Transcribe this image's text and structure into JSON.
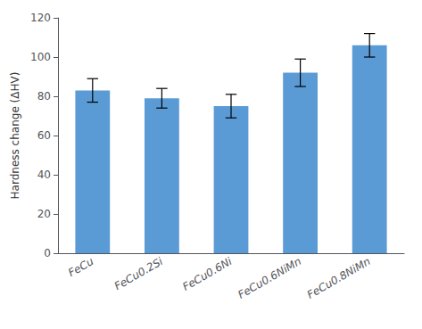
{
  "chart_data": {
    "type": "bar",
    "categories": [
      "FeCu",
      "FeCu0.2Si",
      "FeCu0.6Ni",
      "FeCu0.6NiMn",
      "FeCu0.8NiMn"
    ],
    "values": [
      83,
      79,
      75,
      92,
      106
    ],
    "errors": [
      6,
      5,
      6,
      7,
      6
    ],
    "color": "#5b9bd5",
    "ylabel": "Hardness change (ΔHV)",
    "ylim": [
      0,
      120
    ],
    "yticks": [
      0,
      20,
      40,
      60,
      80,
      100,
      120
    ],
    "grid": false
  }
}
